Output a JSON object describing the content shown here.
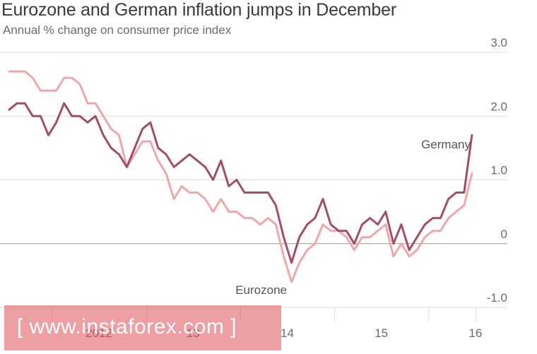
{
  "header": {
    "title": "Eurozone and German inflation jumps in December",
    "subtitle": "Annual % change on consumer price index"
  },
  "watermark": {
    "text": "[ www.instaforex.com ]"
  },
  "colors": {
    "germany": "#a24d6c",
    "eurozone": "#f0a7ab",
    "grid": "#dcdcdc",
    "zero": "#b8b8b8"
  },
  "chart_data": {
    "type": "line",
    "title": "Eurozone and German inflation jumps in December",
    "subtitle": "Annual % change on consumer price index",
    "xlabel": "",
    "ylabel": "",
    "ylim": [
      -1.0,
      3.0
    ],
    "yticks": [
      3.0,
      2.0,
      1.0,
      0,
      -1.0
    ],
    "ytick_labels": [
      "3.0",
      "2.0",
      "1.0",
      "0",
      "-1.0"
    ],
    "xticks": [
      {
        "label": "2012",
        "month_index": 6
      },
      {
        "label": "13",
        "month_index": 18
      },
      {
        "label": "14",
        "month_index": 30
      },
      {
        "label": "15",
        "month_index": 42
      },
      {
        "label": "16",
        "month_index": 54
      }
    ],
    "x": [
      "Jan 2012",
      "Feb 2012",
      "Mar 2012",
      "Apr 2012",
      "May 2012",
      "Jun 2012",
      "Jul 2012",
      "Aug 2012",
      "Sep 2012",
      "Oct 2012",
      "Nov 2012",
      "Dec 2012",
      "Jan 2013",
      "Feb 2013",
      "Mar 2013",
      "Apr 2013",
      "May 2013",
      "Jun 2013",
      "Jul 2013",
      "Aug 2013",
      "Sep 2013",
      "Oct 2013",
      "Nov 2013",
      "Dec 2013",
      "Jan 2014",
      "Feb 2014",
      "Mar 2014",
      "Apr 2014",
      "May 2014",
      "Jun 2014",
      "Jul 2014",
      "Aug 2014",
      "Sep 2014",
      "Oct 2014",
      "Nov 2014",
      "Dec 2014",
      "Jan 2015",
      "Feb 2015",
      "Mar 2015",
      "Apr 2015",
      "May 2015",
      "Jun 2015",
      "Jul 2015",
      "Aug 2015",
      "Sep 2015",
      "Oct 2015",
      "Nov 2015",
      "Dec 2015",
      "Jan 2016",
      "Feb 2016",
      "Mar 2016",
      "Apr 2016",
      "May 2016",
      "Jun 2016",
      "Jul 2016",
      "Aug 2016",
      "Sep 2016",
      "Oct 2016",
      "Nov 2016",
      "Dec 2016"
    ],
    "series": [
      {
        "name": "Germany",
        "values": [
          2.1,
          2.2,
          2.2,
          2.0,
          2.0,
          1.7,
          1.9,
          2.2,
          2.0,
          2.0,
          1.9,
          2.0,
          1.7,
          1.5,
          1.4,
          1.2,
          1.5,
          1.8,
          1.9,
          1.5,
          1.4,
          1.2,
          1.3,
          1.4,
          1.3,
          1.2,
          1.0,
          1.3,
          0.9,
          1.0,
          0.8,
          0.8,
          0.8,
          0.8,
          0.6,
          0.1,
          -0.3,
          0.1,
          0.3,
          0.4,
          0.7,
          0.3,
          0.2,
          0.2,
          0.0,
          0.3,
          0.4,
          0.3,
          0.5,
          0.0,
          0.3,
          -0.1,
          0.1,
          0.3,
          0.4,
          0.4,
          0.7,
          0.8,
          0.8,
          1.7
        ]
      },
      {
        "name": "Eurozone",
        "values": [
          2.7,
          2.7,
          2.7,
          2.6,
          2.4,
          2.4,
          2.4,
          2.6,
          2.6,
          2.5,
          2.2,
          2.2,
          2.0,
          1.8,
          1.7,
          1.2,
          1.4,
          1.6,
          1.6,
          1.3,
          1.1,
          0.7,
          0.9,
          0.8,
          0.8,
          0.7,
          0.5,
          0.7,
          0.5,
          0.5,
          0.4,
          0.4,
          0.3,
          0.4,
          0.3,
          -0.2,
          -0.6,
          -0.3,
          -0.1,
          0.0,
          0.3,
          0.2,
          0.2,
          0.1,
          -0.1,
          0.1,
          0.1,
          0.2,
          0.3,
          -0.2,
          0.0,
          -0.2,
          -0.1,
          0.1,
          0.2,
          0.2,
          0.4,
          0.5,
          0.6,
          1.1
        ]
      }
    ],
    "annotations": [
      {
        "text": "Germany",
        "series": "Germany"
      },
      {
        "text": "Eurozone",
        "series": "Eurozone"
      }
    ]
  }
}
